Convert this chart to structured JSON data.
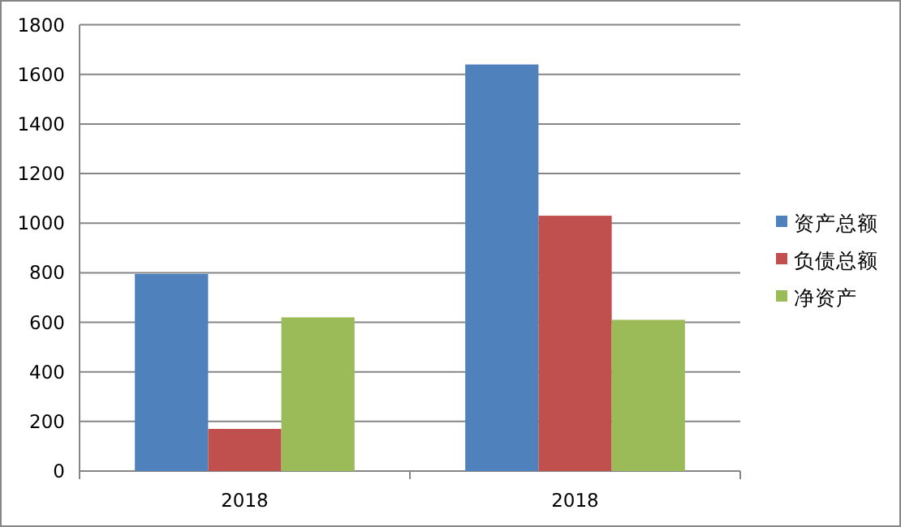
{
  "chart_data": {
    "type": "bar",
    "categories": [
      "2018",
      "2018"
    ],
    "series": [
      {
        "name": "资产总额",
        "color": "#4f81bd",
        "values": [
          795,
          1640
        ]
      },
      {
        "name": "负债总额",
        "color": "#c0504d",
        "values": [
          170,
          1030
        ]
      },
      {
        "name": "净资产",
        "color": "#9bbb59",
        "values": [
          620,
          610
        ]
      }
    ],
    "ylim": [
      0,
      1800
    ],
    "yticks": [
      0,
      200,
      400,
      600,
      800,
      1000,
      1200,
      1400,
      1600,
      1800
    ],
    "grid": "y",
    "legend": "right"
  }
}
